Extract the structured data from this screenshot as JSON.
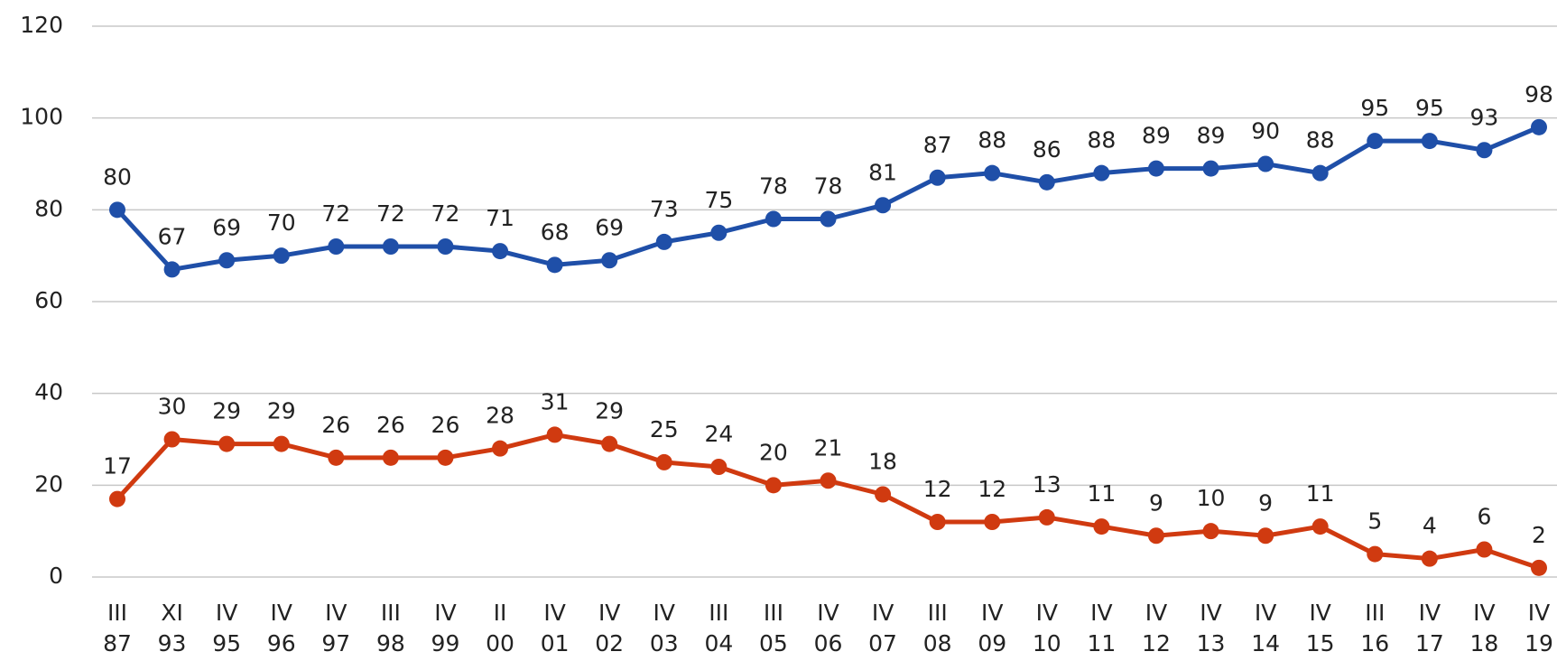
{
  "chart_data": {
    "type": "line",
    "categories": [
      [
        "III",
        "87"
      ],
      [
        "XI",
        "93"
      ],
      [
        "IV",
        "95"
      ],
      [
        "IV",
        "96"
      ],
      [
        "IV",
        "97"
      ],
      [
        "III",
        "98"
      ],
      [
        "IV",
        "99"
      ],
      [
        "II",
        "00"
      ],
      [
        "IV",
        "01"
      ],
      [
        "IV",
        "02"
      ],
      [
        "IV",
        "03"
      ],
      [
        "III",
        "04"
      ],
      [
        "III",
        "05"
      ],
      [
        "IV",
        "06"
      ],
      [
        "IV",
        "07"
      ],
      [
        "III",
        "08"
      ],
      [
        "IV",
        "09"
      ],
      [
        "IV",
        "10"
      ],
      [
        "IV",
        "11"
      ],
      [
        "IV",
        "12"
      ],
      [
        "IV",
        "13"
      ],
      [
        "IV",
        "14"
      ],
      [
        "IV",
        "15"
      ],
      [
        "III",
        "16"
      ],
      [
        "IV",
        "17"
      ],
      [
        "IV",
        "18"
      ],
      [
        "IV",
        "19"
      ]
    ],
    "series": [
      {
        "color": "#1f4fa8",
        "values": [
          80,
          67,
          69,
          70,
          72,
          72,
          72,
          71,
          68,
          69,
          73,
          75,
          78,
          78,
          81,
          87,
          88,
          86,
          88,
          89,
          89,
          90,
          88,
          95,
          95,
          93,
          98
        ]
      },
      {
        "color": "#d03a10",
        "values": [
          17,
          30,
          29,
          29,
          26,
          26,
          26,
          28,
          31,
          29,
          25,
          24,
          20,
          21,
          18,
          12,
          12,
          13,
          11,
          9,
          10,
          9,
          11,
          5,
          4,
          6,
          2
        ]
      }
    ],
    "ylim": [
      0,
      120
    ],
    "yticks": [
      0,
      20,
      40,
      60,
      80,
      100,
      120
    ],
    "grid": true
  }
}
